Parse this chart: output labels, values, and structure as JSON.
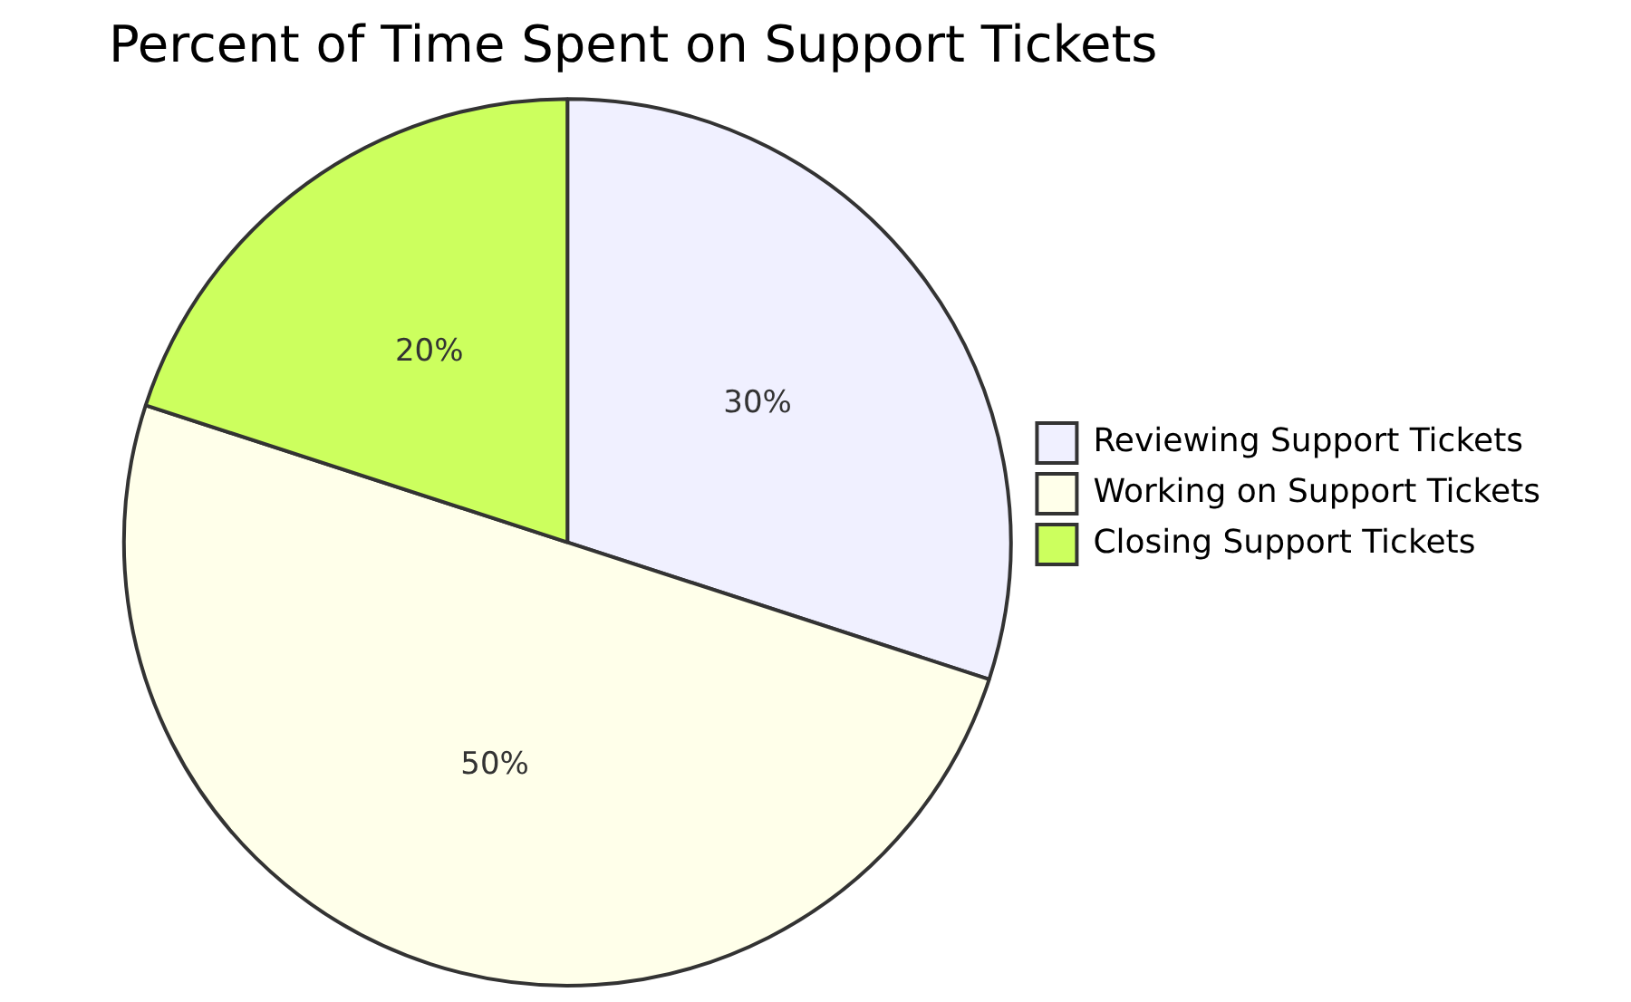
{
  "chart_data": {
    "type": "pie",
    "title": "Percent of Time Spent on Support Tickets",
    "categories": [
      "Reviewing Support Tickets",
      "Working on Support Tickets",
      "Closing Support Tickets"
    ],
    "values": [
      30,
      50,
      20
    ],
    "colors": [
      "#f0f0ff",
      "#ffffea",
      "#ccff5e"
    ],
    "value_labels": [
      "30%",
      "50%",
      "20%"
    ],
    "legend": "right"
  }
}
